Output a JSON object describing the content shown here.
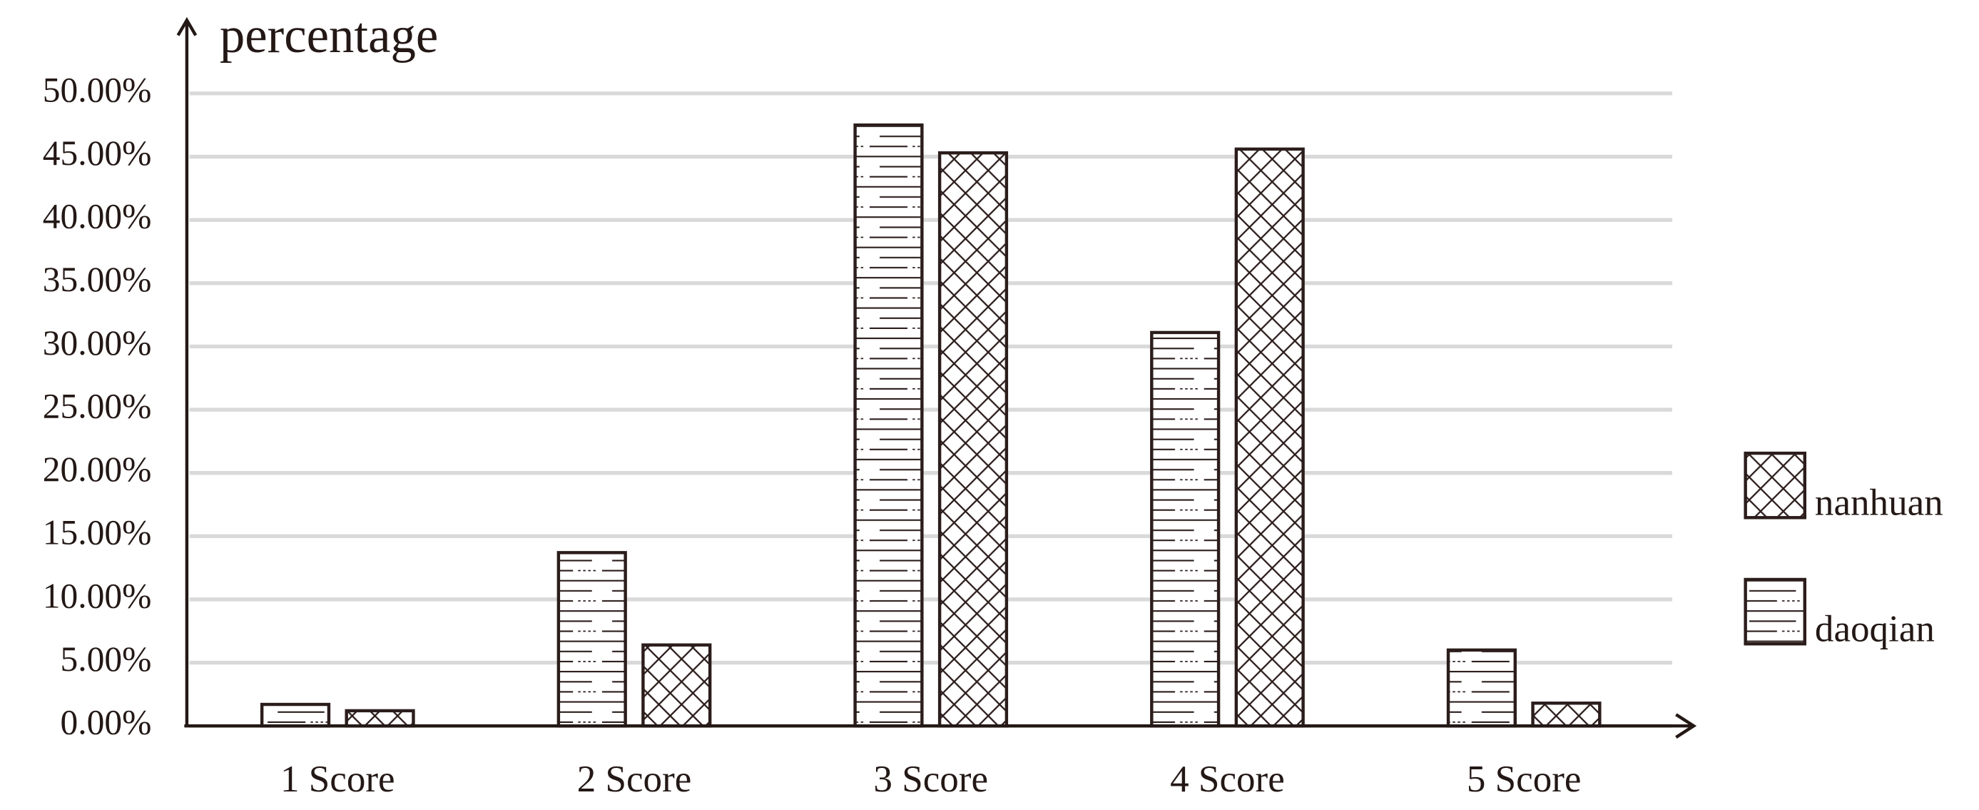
{
  "chart_data": {
    "type": "bar",
    "y_label": "percentage",
    "categories": [
      "1 Score",
      "2 Score",
      "3 Score",
      "4 Score",
      "5 Score"
    ],
    "series": [
      {
        "name": "daoqian",
        "color": "#2b1d1b",
        "pattern": "hlines",
        "values": [
          1.7,
          13.7,
          47.5,
          31.1,
          6.0
        ]
      },
      {
        "name": "nanhuan",
        "color": "#2b1d1b",
        "pattern": "crosshatch",
        "values": [
          1.2,
          6.4,
          45.3,
          45.6,
          1.8
        ]
      }
    ],
    "ylim": [
      0,
      50
    ],
    "yticks": [
      {
        "value": 0,
        "label": "0.00%"
      },
      {
        "value": 5,
        "label": "5.00%"
      },
      {
        "value": 10,
        "label": "10.00%"
      },
      {
        "value": 15,
        "label": "15.00%"
      },
      {
        "value": 20,
        "label": "20.00%"
      },
      {
        "value": 25,
        "label": "25.00%"
      },
      {
        "value": 30,
        "label": "30.00%"
      },
      {
        "value": 35,
        "label": "35.00%"
      },
      {
        "value": 40,
        "label": "40.00%"
      },
      {
        "value": 45,
        "label": "45.00%"
      },
      {
        "value": 50,
        "label": "50.00%"
      }
    ],
    "grid": true,
    "legend": "right"
  }
}
